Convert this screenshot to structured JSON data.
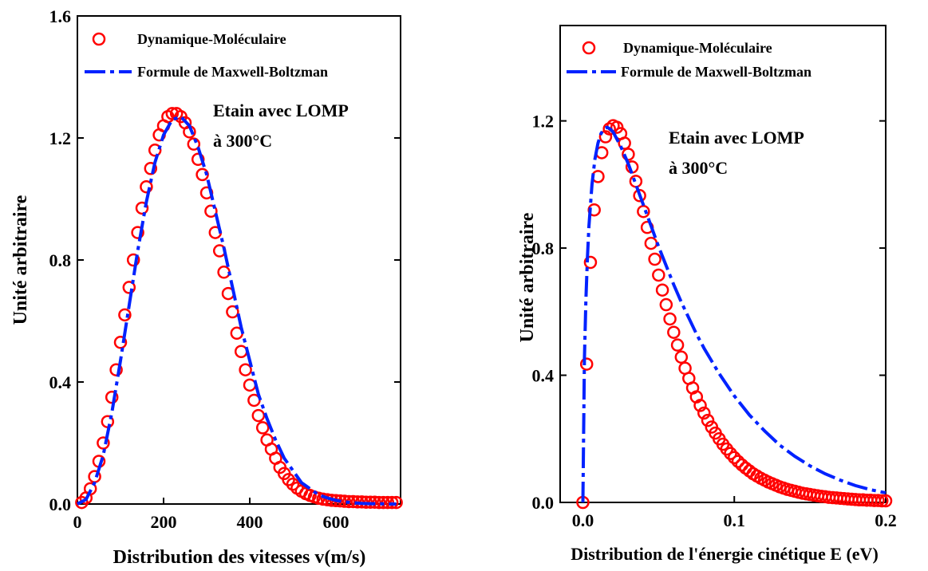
{
  "colors": {
    "md_marker": "#ff0000",
    "mb_line": "#0022ff",
    "axis": "#000000"
  },
  "chart_data": [
    {
      "type": "line",
      "xlabel": "Distribution des vitesses v(m/s)",
      "ylabel": "Unité arbitraire",
      "xlim": [
        0,
        750
      ],
      "ylim": [
        0,
        1.6
      ],
      "xticks": [
        "0",
        "200",
        "400",
        "600"
      ],
      "xtick_values": [
        0,
        200,
        400,
        600
      ],
      "yticks": [
        "0.0",
        "0.4",
        "0.8",
        "1.2",
        "1.6"
      ],
      "ytick_values": [
        0,
        0.4,
        0.8,
        1.2,
        1.6
      ],
      "grid": false,
      "legend": [
        "Dynamique-Moléculaire",
        "Formule de Maxwell-Boltzman"
      ],
      "legend_position": "top-left",
      "annotation": [
        "Etain avec LOMP",
        "à 300°C"
      ],
      "series": [
        {
          "name": "Dynamique-Moléculaire",
          "marker": "circle",
          "x": [
            10,
            20,
            30,
            40,
            50,
            60,
            70,
            80,
            90,
            100,
            110,
            120,
            130,
            140,
            150,
            160,
            170,
            180,
            190,
            200,
            210,
            220,
            230,
            240,
            250,
            260,
            270,
            280,
            290,
            300,
            310,
            320,
            330,
            340,
            350,
            360,
            370,
            380,
            390,
            400,
            410,
            420,
            430,
            440,
            450,
            460,
            470,
            480,
            490,
            500,
            510,
            520,
            530,
            540,
            550,
            560,
            570,
            580,
            590,
            600,
            610,
            620,
            630,
            640,
            650,
            660,
            670,
            680,
            690,
            700,
            710,
            720,
            730,
            740
          ],
          "y": [
            0.005,
            0.02,
            0.05,
            0.09,
            0.14,
            0.2,
            0.27,
            0.35,
            0.44,
            0.53,
            0.62,
            0.71,
            0.8,
            0.89,
            0.97,
            1.04,
            1.1,
            1.16,
            1.21,
            1.24,
            1.27,
            1.28,
            1.28,
            1.27,
            1.25,
            1.22,
            1.18,
            1.13,
            1.08,
            1.02,
            0.96,
            0.89,
            0.83,
            0.76,
            0.69,
            0.63,
            0.56,
            0.5,
            0.44,
            0.39,
            0.34,
            0.29,
            0.25,
            0.21,
            0.18,
            0.15,
            0.12,
            0.1,
            0.08,
            0.065,
            0.052,
            0.042,
            0.034,
            0.028,
            0.023,
            0.019,
            0.016,
            0.014,
            0.012,
            0.011,
            0.01,
            0.009,
            0.008,
            0.008,
            0.007,
            0.007,
            0.006,
            0.006,
            0.006,
            0.005,
            0.005,
            0.005,
            0.005,
            0.005
          ]
        },
        {
          "name": "Formule de Maxwell-Boltzman",
          "line": "dash-dot",
          "x": [
            0,
            20,
            40,
            60,
            80,
            100,
            120,
            140,
            160,
            180,
            200,
            220,
            240,
            260,
            280,
            300,
            320,
            340,
            360,
            380,
            400,
            420,
            440,
            460,
            480,
            500,
            520,
            540,
            560,
            580,
            600,
            620,
            640,
            660,
            680,
            700,
            720,
            740
          ],
          "y": [
            0,
            0.015,
            0.07,
            0.16,
            0.3,
            0.47,
            0.65,
            0.83,
            0.99,
            1.12,
            1.21,
            1.26,
            1.27,
            1.24,
            1.17,
            1.08,
            0.96,
            0.84,
            0.71,
            0.58,
            0.47,
            0.36,
            0.28,
            0.21,
            0.15,
            0.11,
            0.07,
            0.05,
            0.03,
            0.02,
            0.012,
            0.007,
            0.004,
            0.002,
            0.001,
            0.001,
            0,
            0
          ]
        }
      ]
    },
    {
      "type": "line",
      "xlabel": "Distribution de l'énergie cinétique E (eV)",
      "ylabel": "Unité arbitraire",
      "xlim": [
        -0.015,
        0.2
      ],
      "ylim": [
        0,
        1.5
      ],
      "xticks": [
        "0.0",
        "0.1",
        "0.2"
      ],
      "xtick_values": [
        0,
        0.1,
        0.2
      ],
      "yticks": [
        "0.0",
        "0.4",
        "0.8",
        "1.2"
      ],
      "ytick_values": [
        0,
        0.4,
        0.8,
        1.2
      ],
      "grid": false,
      "legend": [
        "Dynamique-Moléculaire",
        "Formule de Maxwell-Boltzman"
      ],
      "legend_position": "top-left",
      "annotation": [
        "Etain avec LOMP",
        "à 300°C"
      ],
      "series": [
        {
          "name": "Dynamique-Moléculaire",
          "marker": "circle",
          "x": [
            0,
            0.0025,
            0.005,
            0.0075,
            0.01,
            0.0125,
            0.015,
            0.0175,
            0.02,
            0.0225,
            0.025,
            0.0275,
            0.03,
            0.0325,
            0.035,
            0.0375,
            0.04,
            0.0425,
            0.045,
            0.0475,
            0.05,
            0.0525,
            0.055,
            0.0575,
            0.06,
            0.0625,
            0.065,
            0.0675,
            0.07,
            0.0725,
            0.075,
            0.0775,
            0.08,
            0.0825,
            0.085,
            0.0875,
            0.09,
            0.0925,
            0.095,
            0.0975,
            0.1,
            0.1025,
            0.105,
            0.1075,
            0.11,
            0.1125,
            0.115,
            0.1175,
            0.12,
            0.1225,
            0.125,
            0.1275,
            0.13,
            0.1325,
            0.135,
            0.1375,
            0.14,
            0.1425,
            0.145,
            0.1475,
            0.15,
            0.1525,
            0.155,
            0.1575,
            0.16,
            0.1625,
            0.165,
            0.1675,
            0.17,
            0.1725,
            0.175,
            0.1775,
            0.18,
            0.1825,
            0.185,
            0.1875,
            0.19,
            0.1925,
            0.195,
            0.1975,
            0.2
          ],
          "y": [
            0,
            0.435,
            0.755,
            0.92,
            1.025,
            1.1,
            1.15,
            1.175,
            1.185,
            1.18,
            1.16,
            1.13,
            1.095,
            1.055,
            1.01,
            0.965,
            0.915,
            0.865,
            0.815,
            0.765,
            0.715,
            0.668,
            0.622,
            0.577,
            0.535,
            0.495,
            0.457,
            0.422,
            0.39,
            0.36,
            0.332,
            0.305,
            0.281,
            0.258,
            0.237,
            0.218,
            0.2,
            0.183,
            0.168,
            0.154,
            0.141,
            0.129,
            0.118,
            0.108,
            0.099,
            0.09,
            0.083,
            0.076,
            0.07,
            0.064,
            0.059,
            0.054,
            0.049,
            0.045,
            0.041,
            0.038,
            0.035,
            0.032,
            0.029,
            0.027,
            0.025,
            0.023,
            0.021,
            0.019,
            0.018,
            0.016,
            0.015,
            0.014,
            0.013,
            0.012,
            0.011,
            0.01,
            0.009,
            0.008,
            0.008,
            0.007,
            0.007,
            0.006,
            0.006,
            0.005,
            0.005
          ]
        },
        {
          "name": "Formule de Maxwell-Boltzman",
          "line": "dash-dot",
          "x": [
            0,
            0.001,
            0.002,
            0.003,
            0.004,
            0.006,
            0.008,
            0.01,
            0.012,
            0.014,
            0.016,
            0.018,
            0.02,
            0.025,
            0.03,
            0.035,
            0.04,
            0.045,
            0.05,
            0.055,
            0.06,
            0.065,
            0.07,
            0.075,
            0.08,
            0.09,
            0.1,
            0.11,
            0.12,
            0.13,
            0.14,
            0.15,
            0.16,
            0.17,
            0.18,
            0.19,
            0.2
          ],
          "y": [
            0,
            0.45,
            0.64,
            0.77,
            0.87,
            1.0,
            1.08,
            1.13,
            1.16,
            1.175,
            1.18,
            1.175,
            1.165,
            1.12,
            1.065,
            1.0,
            0.935,
            0.87,
            0.805,
            0.745,
            0.685,
            0.63,
            0.58,
            0.53,
            0.485,
            0.405,
            0.335,
            0.275,
            0.225,
            0.18,
            0.145,
            0.115,
            0.09,
            0.07,
            0.053,
            0.04,
            0.03
          ]
        }
      ]
    }
  ]
}
